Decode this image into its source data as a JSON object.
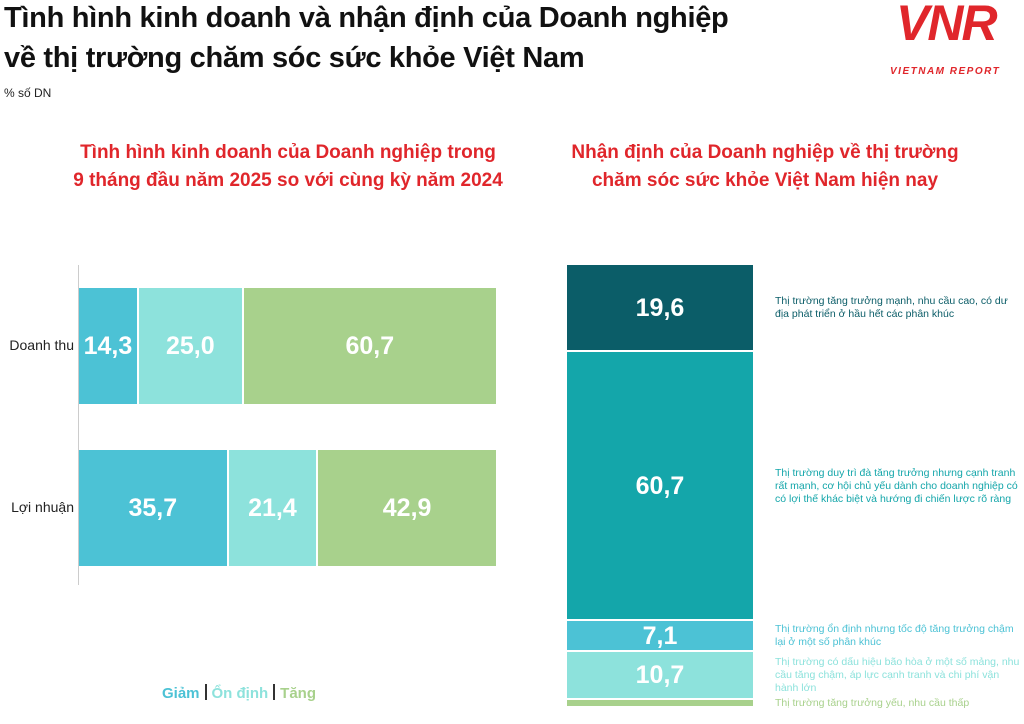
{
  "title": [
    "Tình hình kinh doanh và nhận định của Doanh nghiệp",
    "về thị trường chăm sóc sức khỏe Việt Nam"
  ],
  "unit": "% số DN",
  "logo": {
    "text": "VNR",
    "subtext": "VIETNAM REPORT"
  },
  "chart_data": [
    {
      "type": "bar",
      "orientation": "horizontal",
      "stacked": true,
      "title": [
        "Tình hình kinh doanh của Doanh nghiệp trong",
        "9 tháng đầu năm 2025 so với cùng kỳ năm 2024"
      ],
      "categories": [
        "Doanh thu",
        "Lợi nhuận"
      ],
      "series": [
        {
          "name": "Giảm",
          "color": "#4cc2d5",
          "values": [
            14.3,
            35.7
          ],
          "value_labels": [
            "14,3",
            "35,7"
          ]
        },
        {
          "name": "Ổn định",
          "color": "#8de2dc",
          "values": [
            25.0,
            21.4
          ],
          "value_labels": [
            "25,0",
            "21,4"
          ]
        },
        {
          "name": "Tăng",
          "color": "#a8d18c",
          "values": [
            60.7,
            42.9
          ],
          "value_labels": [
            "60,7",
            "42,9"
          ]
        }
      ],
      "xlim": [
        0,
        100
      ],
      "legend": "bottom"
    },
    {
      "type": "bar",
      "orientation": "vertical",
      "stacked": true,
      "title": [
        "Nhận định của Doanh nghiệp về thị trường",
        "chăm sóc sức khỏe Việt Nam hiện nay"
      ],
      "series": [
        {
          "name": "Thị trường tăng trưởng mạnh, nhu cầu cao, có dư địa phát triển ở hầu hết các phân khúc",
          "color": "#0b5d68",
          "values": [
            19.6
          ],
          "value_labels": [
            "19,6"
          ]
        },
        {
          "name": "Thị trường duy trì đà tăng trưởng nhưng cạnh tranh rất mạnh, cơ hội chủ yếu dành cho doanh nghiệp có có lợi thế khác biệt và hướng đi chiến lược rõ ràng",
          "color": "#14a6aa",
          "values": [
            60.7
          ],
          "value_labels": [
            "60,7"
          ]
        },
        {
          "name": "Thị trường ổn định nhưng tốc độ tăng trưởng chậm lại ở một số phân khúc",
          "color": "#4cc2d5",
          "values": [
            7.1
          ],
          "value_labels": [
            "7,1"
          ]
        },
        {
          "name": "Thị trường có dấu hiệu bão hòa ở một số mảng, nhu cầu tăng chậm, áp lực cạnh tranh và chi phí vận hành lớn",
          "color": "#8de2dc",
          "values": [
            10.7
          ],
          "value_labels": [
            "10,7"
          ]
        },
        {
          "name": "Thị trường tăng trưởng yếu, nhu cầu thấp",
          "color": "#a8d18c",
          "values": [
            1.9
          ],
          "value_labels": [
            null
          ]
        }
      ],
      "ylim": [
        0,
        100
      ],
      "legend": "right"
    }
  ]
}
